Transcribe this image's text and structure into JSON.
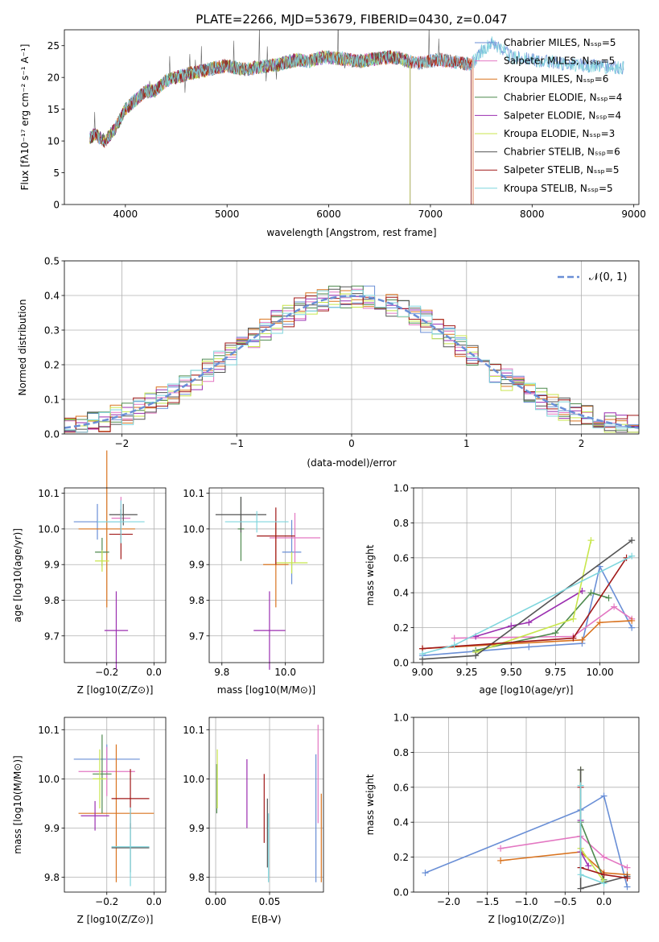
{
  "chart_data": [
    {
      "type": "line",
      "title": "PLATE=2266, MJD=53679, FIBERID=0430, z=0.047",
      "xlabel": "wavelength [Angstrom, rest frame]",
      "ylabel": "Flux [fλ10⁻¹⁷ erg cm⁻² s⁻¹ A⁻¹]",
      "xlim": [
        3400,
        9050
      ],
      "ylim": [
        0,
        27.5
      ],
      "xticks": [
        4000,
        5000,
        6000,
        7000,
        8000,
        9000
      ],
      "yticks": [
        0,
        5,
        10,
        15,
        20,
        25
      ],
      "legend_position": "upper-right",
      "grid": false,
      "spectrum_envelope": {
        "x": [
          3650,
          3700,
          3800,
          3900,
          4000,
          4100,
          4200,
          4300,
          4400,
          4500,
          4600,
          4700,
          4800,
          4900,
          5000,
          5100,
          5200,
          5300,
          5400,
          5500,
          5600,
          5700,
          5800,
          5900,
          6000,
          6100,
          6200,
          6300,
          6400,
          6500,
          6600,
          6700,
          6800,
          6900,
          7000,
          7100,
          7200,
          7300,
          7400,
          7500,
          7600,
          7700,
          7800,
          7900,
          8000,
          8100,
          8200,
          8300,
          8400,
          8500,
          8600,
          8700,
          8800,
          8900
        ],
        "y": [
          10.5,
          11.0,
          10.0,
          12.0,
          15.0,
          16.5,
          17.8,
          18.0,
          19.5,
          20.0,
          20.5,
          20.8,
          21.2,
          21.6,
          21.8,
          21.5,
          21.2,
          21.6,
          21.8,
          22.0,
          22.5,
          22.8,
          22.5,
          23.0,
          23.2,
          23.0,
          22.8,
          22.5,
          22.8,
          23.0,
          23.2,
          23.0,
          22.5,
          22.3,
          22.6,
          22.8,
          22.5,
          22.3,
          22.0,
          24.0,
          25.5,
          24.5,
          23.2,
          23.0,
          22.8,
          22.6,
          22.4,
          22.2,
          22.0,
          21.9,
          21.8,
          21.7,
          21.6,
          21.5
        ]
      },
      "series": [
        {
          "name": "Chabrier MILES, N_SSP=5",
          "color": "#6a8fd6",
          "end": 9000
        },
        {
          "name": "Salpeter MILES, N_SSP=5",
          "color": "#e377c2",
          "end": 7420
        },
        {
          "name": "Kroupa MILES, N_SSP=6",
          "color": "#d9731f",
          "end": 7420
        },
        {
          "name": "Chabrier ELODIE, N_SSP=4",
          "color": "#4f8a4f",
          "end": 6800
        },
        {
          "name": "Salpeter ELODIE, N_SSP=4",
          "color": "#9b2fb0",
          "end": 6800
        },
        {
          "name": "Kroupa ELODIE, N_SSP=3",
          "color": "#c8e64c",
          "end": 6800
        },
        {
          "name": "Chabrier STELIB, N_SSP=6",
          "color": "#555555",
          "end": 7400
        },
        {
          "name": "Salpeter STELIB, N_SSP=5",
          "color": "#a01818",
          "end": 7400
        },
        {
          "name": "Kroupa STELIB, N_SSP=5",
          "color": "#7fd6dd",
          "end": 9000
        }
      ]
    },
    {
      "type": "step",
      "xlabel": "(data-model)/error",
      "ylabel": "Normed distribution",
      "xlim": [
        -2.5,
        2.5
      ],
      "ylim": [
        0,
        0.5
      ],
      "xticks": [
        -2,
        -1,
        0,
        1,
        2
      ],
      "yticks": [
        0.0,
        0.1,
        0.2,
        0.3,
        0.4,
        0.5
      ],
      "grid": true,
      "legend": "𝒩(0, 1)",
      "legend_position": "upper-right",
      "bin_edges": [
        -2.5,
        -2.4,
        -2.3,
        -2.2,
        -2.1,
        -2.0,
        -1.9,
        -1.8,
        -1.7,
        -1.6,
        -1.5,
        -1.4,
        -1.3,
        -1.2,
        -1.1,
        -1.0,
        -0.9,
        -0.8,
        -0.7,
        -0.6,
        -0.5,
        -0.4,
        -0.3,
        -0.2,
        -0.1,
        0.0,
        0.1,
        0.2,
        0.3,
        0.4,
        0.5,
        0.6,
        0.7,
        0.8,
        0.9,
        1.0,
        1.1,
        1.2,
        1.3,
        1.4,
        1.5,
        1.6,
        1.7,
        1.8,
        1.9,
        2.0,
        2.1,
        2.2,
        2.3,
        2.4,
        2.5
      ],
      "gaussian": {
        "mean": 0,
        "sigma": 1
      }
    },
    {
      "type": "scatter",
      "xlabel": "Z [log10(Z/Z⊙)]",
      "ylabel": "age  [log10(age/yr)]",
      "xlim": [
        -0.38,
        0.05
      ],
      "ylim": [
        9.625,
        10.115
      ],
      "xticks": [
        -0.2,
        0.0
      ],
      "yticks": [
        9.7,
        9.8,
        9.9,
        10.0,
        10.1
      ],
      "grid": true,
      "points": [
        {
          "x": -0.24,
          "y": 10.02,
          "xerr": 0.1,
          "yerr": 0.05,
          "c": 0
        },
        {
          "x": -0.14,
          "y": 10.03,
          "xerr": 0.04,
          "yerr": 0.06,
          "c": 1
        },
        {
          "x": -0.2,
          "y": 10.0,
          "xerr": 0.12,
          "yerr": 0.22,
          "c": 2
        },
        {
          "x": -0.22,
          "y": 9.935,
          "xerr": 0.03,
          "yerr": 0.04,
          "c": 3
        },
        {
          "x": -0.16,
          "y": 9.715,
          "xerr": 0.05,
          "yerr": 0.11,
          "c": 4
        },
        {
          "x": -0.22,
          "y": 9.91,
          "xerr": 0.03,
          "yerr": 0.03,
          "c": 5
        },
        {
          "x": -0.13,
          "y": 10.04,
          "xerr": 0.06,
          "yerr": 0.03,
          "c": 6
        },
        {
          "x": -0.14,
          "y": 9.985,
          "xerr": 0.05,
          "yerr": 0.07,
          "c": 7
        },
        {
          "x": -0.14,
          "y": 10.02,
          "xerr": 0.1,
          "yerr": 0.06,
          "c": 8
        }
      ]
    },
    {
      "type": "scatter",
      "xlabel": "mass [log10(M/M⊙)]",
      "xlim": [
        9.76,
        10.12
      ],
      "ylim": [
        9.625,
        10.115
      ],
      "xticks": [
        9.8,
        10.0
      ],
      "yticks": [
        9.7,
        9.8,
        9.9,
        10.0,
        10.1
      ],
      "grid": true,
      "points": [
        {
          "x": 10.02,
          "y": 9.935,
          "xerr": 0.03,
          "yerr": 0.09,
          "c": 0
        },
        {
          "x": 10.03,
          "y": 9.975,
          "xerr": 0.08,
          "yerr": 0.07,
          "c": 1
        },
        {
          "x": 9.97,
          "y": 9.9,
          "xerr": 0.04,
          "yerr": 0.12,
          "c": 2
        },
        {
          "x": 9.86,
          "y": 10.0,
          "xerr": 0.01,
          "yerr": 0.09,
          "c": 3
        },
        {
          "x": 9.95,
          "y": 9.715,
          "xerr": 0.05,
          "yerr": 0.11,
          "c": 4
        },
        {
          "x": 10.02,
          "y": 9.905,
          "xerr": 0.05,
          "yerr": 0.03,
          "c": 5
        },
        {
          "x": 9.86,
          "y": 10.04,
          "xerr": 0.08,
          "yerr": 0.05,
          "c": 6
        },
        {
          "x": 9.97,
          "y": 9.98,
          "xerr": 0.06,
          "yerr": 0.08,
          "c": 7
        },
        {
          "x": 9.91,
          "y": 10.02,
          "xerr": 0.1,
          "yerr": 0.03,
          "c": 8
        }
      ]
    },
    {
      "type": "line",
      "xlabel": "age  [log10(age/yr)]",
      "ylabel": "mass weight",
      "xlim": [
        8.95,
        10.22
      ],
      "ylim": [
        0,
        1.0
      ],
      "xticks": [
        9.0,
        9.25,
        9.5,
        9.75,
        10.0
      ],
      "yticks": [
        0.0,
        0.2,
        0.4,
        0.6,
        0.8,
        1.0
      ],
      "grid": true,
      "series": [
        {
          "c": 0,
          "x": [
            9.0,
            9.6,
            9.9,
            10.0,
            10.18
          ],
          "y": [
            0.04,
            0.09,
            0.11,
            0.55,
            0.2
          ]
        },
        {
          "c": 1,
          "x": [
            9.18,
            9.85,
            10.08,
            10.18
          ],
          "y": [
            0.14,
            0.15,
            0.32,
            0.25
          ]
        },
        {
          "c": 2,
          "x": [
            9.0,
            9.9,
            10.0,
            10.18
          ],
          "y": [
            0.08,
            0.13,
            0.23,
            0.24
          ]
        },
        {
          "c": 3,
          "x": [
            9.3,
            9.75,
            9.95,
            10.05
          ],
          "y": [
            0.07,
            0.17,
            0.4,
            0.37
          ]
        },
        {
          "c": 4,
          "x": [
            9.3,
            9.5,
            9.6,
            9.9
          ],
          "y": [
            0.15,
            0.21,
            0.23,
            0.41
          ]
        },
        {
          "c": 5,
          "x": [
            9.3,
            9.85,
            9.95
          ],
          "y": [
            0.06,
            0.25,
            0.7
          ]
        },
        {
          "c": 6,
          "x": [
            9.0,
            9.3,
            10.18
          ],
          "y": [
            0.02,
            0.04,
            0.7
          ]
        },
        {
          "c": 7,
          "x": [
            9.0,
            9.85,
            10.15
          ],
          "y": [
            0.08,
            0.14,
            0.6
          ]
        },
        {
          "c": 8,
          "x": [
            9.0,
            9.18,
            10.18
          ],
          "y": [
            0.05,
            0.1,
            0.61
          ]
        }
      ]
    },
    {
      "type": "scatter",
      "xlabel": "Z [log10(Z/Z⊙)]",
      "ylabel": "mass [log10(M/M⊙)]",
      "xlim": [
        -0.38,
        0.05
      ],
      "ylim": [
        9.77,
        10.125
      ],
      "xticks": [
        -0.2,
        0.0
      ],
      "yticks": [
        9.8,
        9.9,
        10.0,
        10.1
      ],
      "grid": true,
      "points": [
        {
          "x": -0.2,
          "y": 10.04,
          "xerr": 0.14,
          "yerr": 0.03,
          "c": 0
        },
        {
          "x": -0.2,
          "y": 10.015,
          "xerr": 0.12,
          "yerr": 0.05,
          "c": 1
        },
        {
          "x": -0.16,
          "y": 9.93,
          "xerr": 0.16,
          "yerr": 0.14,
          "c": 2
        },
        {
          "x": -0.22,
          "y": 10.01,
          "xerr": 0.04,
          "yerr": 0.08,
          "c": 3
        },
        {
          "x": -0.25,
          "y": 9.925,
          "xerr": 0.06,
          "yerr": 0.03,
          "c": 4
        },
        {
          "x": -0.23,
          "y": 10.0,
          "xerr": 0.03,
          "yerr": 0.06,
          "c": 5
        },
        {
          "x": -0.1,
          "y": 9.86,
          "xerr": 0.08,
          "yerr": 0.05,
          "c": 6
        },
        {
          "x": -0.1,
          "y": 9.96,
          "xerr": 0.08,
          "yerr": 0.06,
          "c": 7
        },
        {
          "x": -0.1,
          "y": 9.862,
          "xerr": 0.08,
          "yerr": 0.08,
          "c": 8
        }
      ]
    },
    {
      "type": "scatter",
      "xlabel": "E(B-V)",
      "xlim": [
        -0.006,
        0.1
      ],
      "ylim": [
        9.77,
        10.125
      ],
      "xticks": [
        0.0,
        0.05
      ],
      "yticks": [
        9.8,
        9.9,
        10.0,
        10.1
      ],
      "grid": true,
      "points": [
        {
          "x": 0.093,
          "y": 9.92,
          "yerr": 0.13,
          "c": 0
        },
        {
          "x": 0.095,
          "y": 10.01,
          "yerr": 0.1,
          "c": 1
        },
        {
          "x": 0.098,
          "y": 9.88,
          "yerr": 0.09,
          "c": 2
        },
        {
          "x": 0.001,
          "y": 9.98,
          "yerr": 0.05,
          "c": 3
        },
        {
          "x": 0.029,
          "y": 9.97,
          "yerr": 0.07,
          "c": 4
        },
        {
          "x": 0.0015,
          "y": 10.0,
          "yerr": 0.06,
          "c": 5
        },
        {
          "x": 0.048,
          "y": 9.89,
          "yerr": 0.07,
          "c": 6
        },
        {
          "x": 0.045,
          "y": 9.94,
          "yerr": 0.07,
          "c": 7
        },
        {
          "x": 0.049,
          "y": 9.86,
          "yerr": 0.07,
          "c": 8
        }
      ]
    },
    {
      "type": "line",
      "xlabel": "Z [log10(Z/Z⊙)]",
      "ylabel": "mass weight",
      "xlim": [
        -2.45,
        0.45
      ],
      "ylim": [
        0,
        1.0
      ],
      "xticks": [
        -2.0,
        -1.5,
        -1.0,
        -0.5,
        0.0
      ],
      "yticks": [
        0.0,
        0.2,
        0.4,
        0.6,
        0.8,
        1.0
      ],
      "grid": true,
      "series": [
        {
          "c": 0,
          "x": [
            -2.3,
            -0.3,
            0.0,
            0.3
          ],
          "y": [
            0.11,
            0.47,
            0.55,
            0.03
          ]
        },
        {
          "c": 1,
          "x": [
            -1.33,
            -0.3,
            0.0,
            0.3
          ],
          "y": [
            0.25,
            0.32,
            0.2,
            0.14
          ]
        },
        {
          "c": 2,
          "x": [
            -1.33,
            -0.3,
            0.0,
            0.3
          ],
          "y": [
            0.18,
            0.23,
            0.11,
            0.1
          ]
        },
        {
          "c": 3,
          "x": [
            -0.3,
            -0.3,
            0.0
          ],
          "y": [
            0.7,
            0.4,
            0.07
          ]
        },
        {
          "c": 4,
          "x": [
            -0.3,
            -0.3,
            -0.2
          ],
          "y": [
            0.41,
            0.23,
            0.15
          ]
        },
        {
          "c": 5,
          "x": [
            -0.3,
            -0.3,
            0.0
          ],
          "y": [
            0.7,
            0.25,
            0.06
          ]
        },
        {
          "c": 6,
          "x": [
            -0.3,
            -0.3,
            0.3
          ],
          "y": [
            0.7,
            0.02,
            0.09
          ]
        },
        {
          "c": 7,
          "x": [
            -0.3,
            -0.3,
            0.0,
            0.3
          ],
          "y": [
            0.6,
            0.14,
            0.1,
            0.08
          ]
        },
        {
          "c": 8,
          "x": [
            -0.3,
            -0.3,
            0.0
          ],
          "y": [
            0.61,
            0.1,
            0.05
          ]
        }
      ]
    }
  ]
}
